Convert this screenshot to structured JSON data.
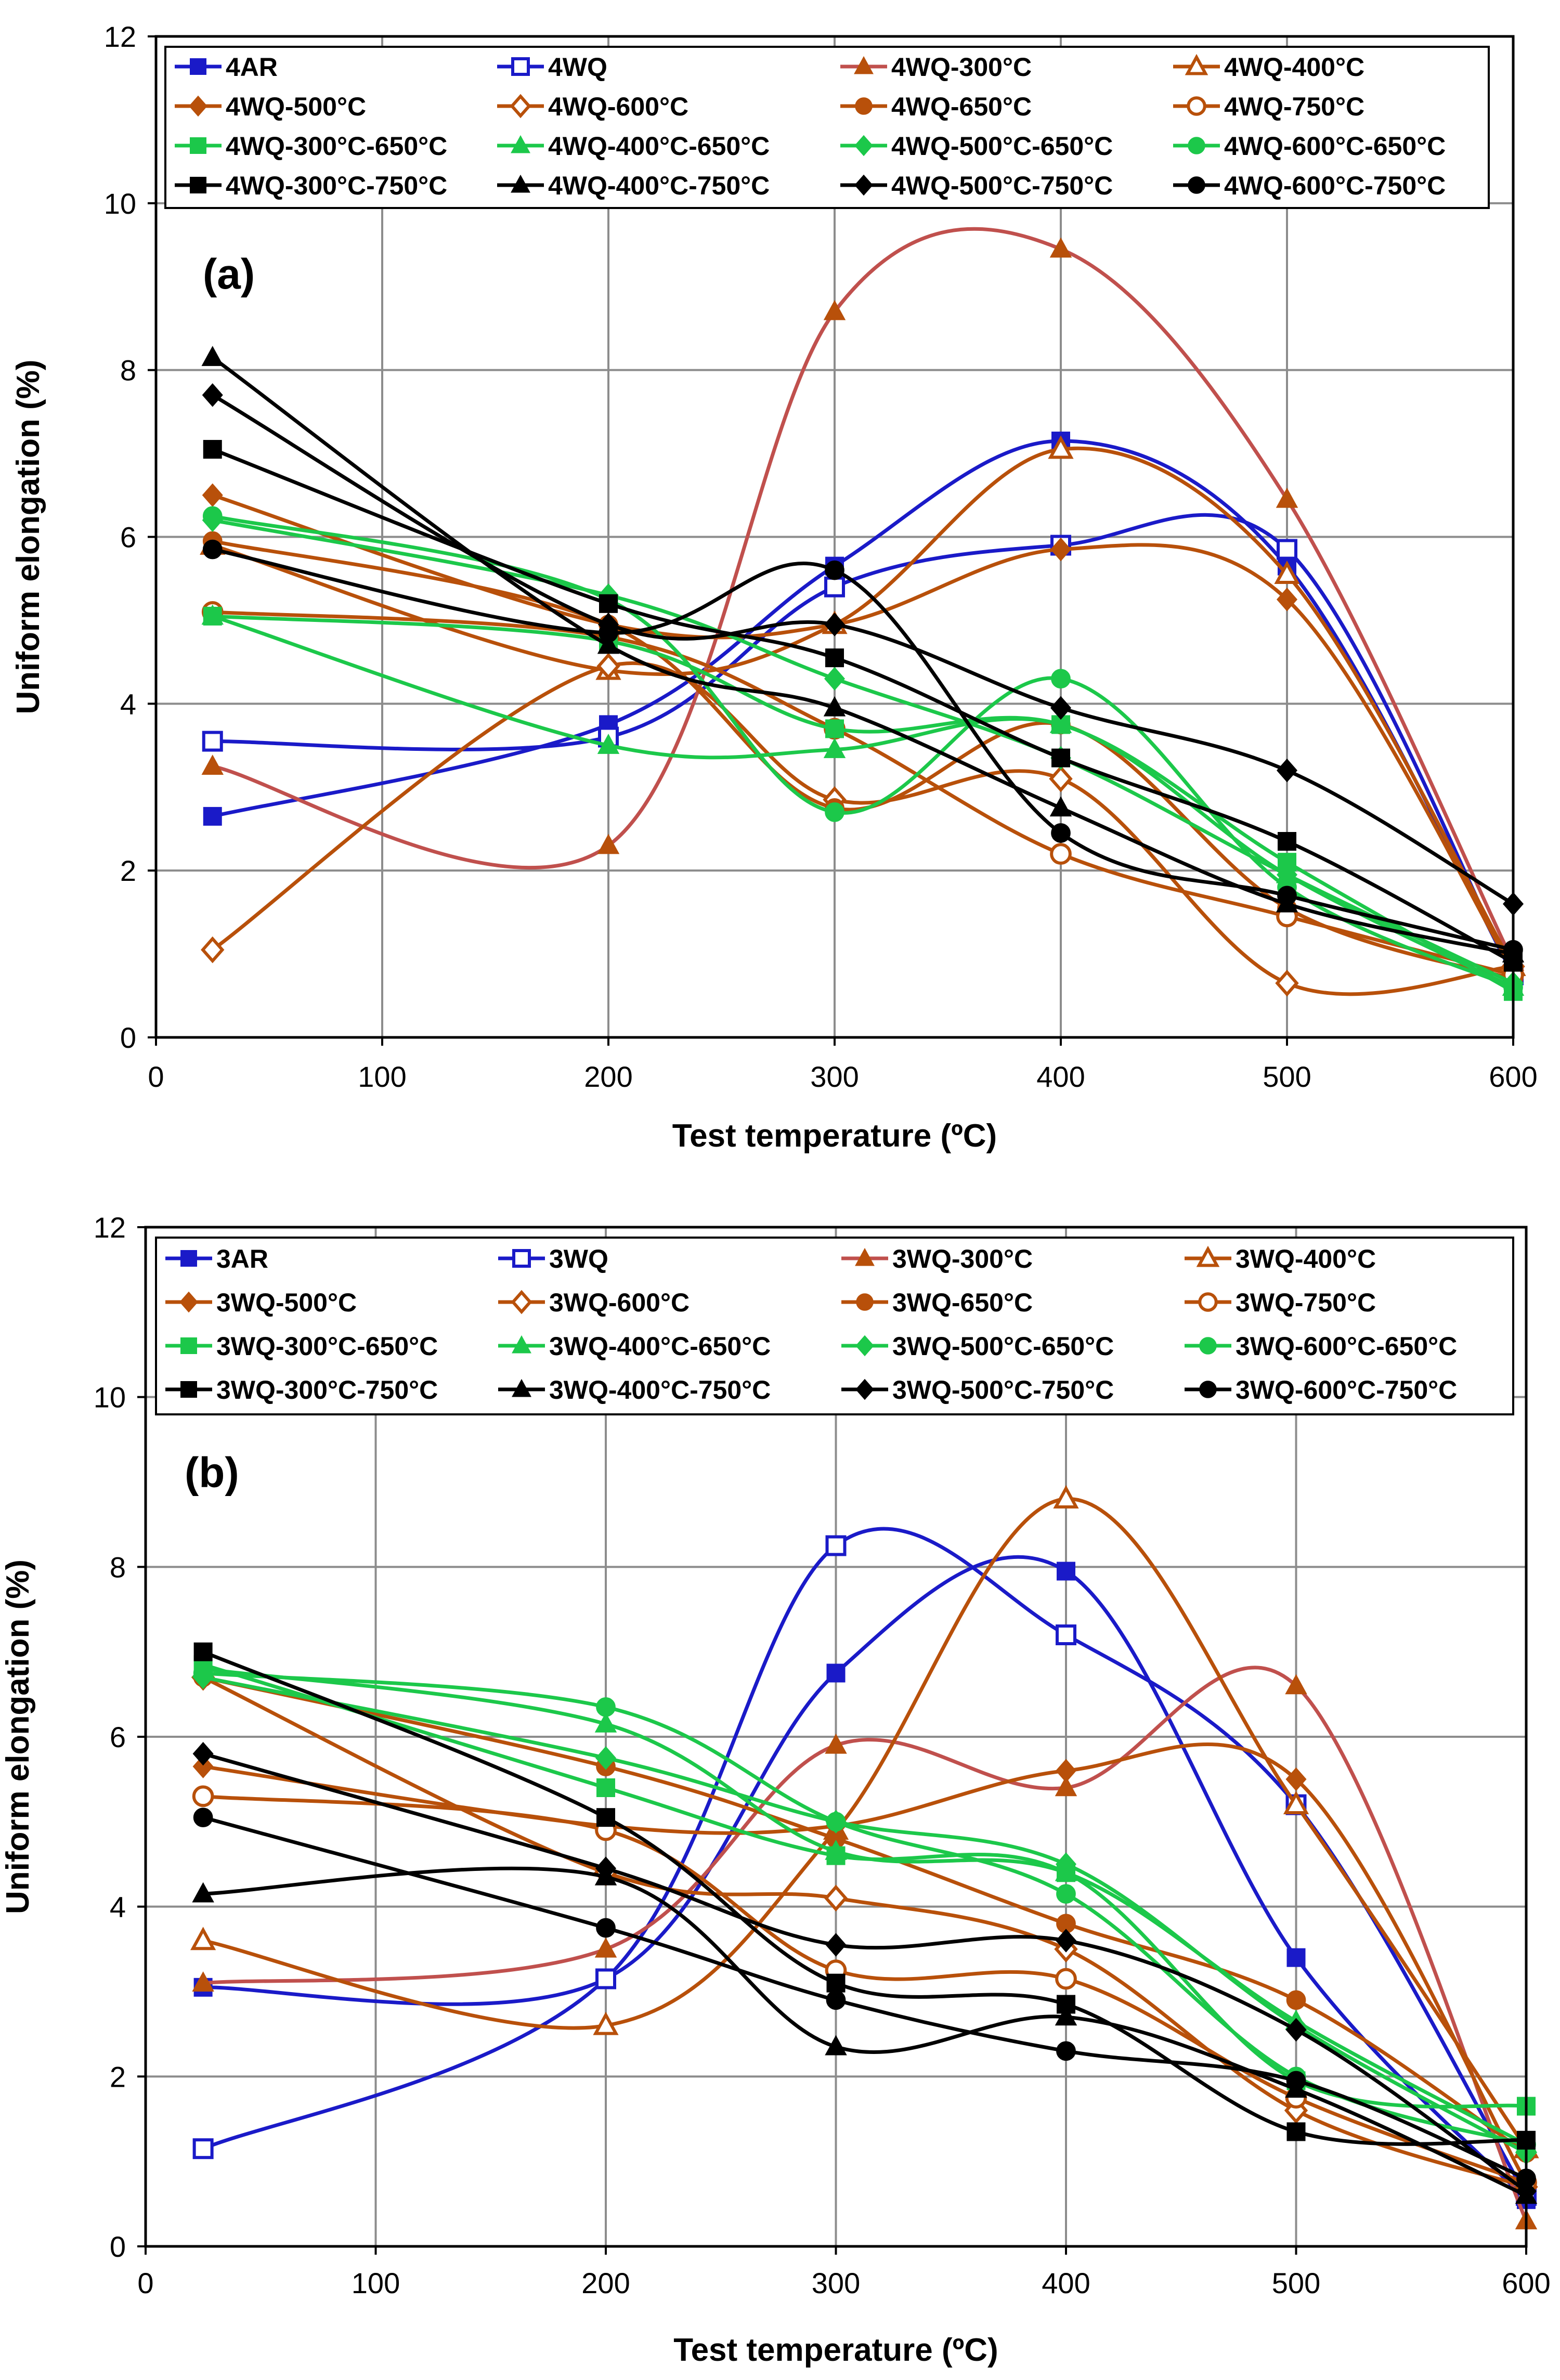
{
  "chart_data": [
    {
      "type": "line",
      "panel_label": "(a)",
      "xlabel": "Test temperature (ºC)",
      "ylabel": "Uniform elongation (%)",
      "xlim": [
        0,
        600
      ],
      "ylim": [
        0,
        12
      ],
      "xticks": [
        "0",
        "100",
        "200",
        "300",
        "400",
        "500",
        "600"
      ],
      "yticks": [
        "0",
        "2",
        "4",
        "6",
        "8",
        "10",
        "12"
      ],
      "grid": true,
      "legend_position": "top",
      "x": [
        25,
        200,
        300,
        400,
        500,
        600
      ],
      "series": [
        {
          "name": "4AR",
          "color": "#1a1ac8",
          "marker": "square",
          "filled": true,
          "values": [
            2.65,
            3.75,
            5.65,
            7.15,
            5.65,
            0.75
          ]
        },
        {
          "name": "4WQ",
          "color": "#1a1ac8",
          "marker": "square",
          "filled": false,
          "values": [
            3.55,
            3.6,
            5.4,
            5.9,
            5.85,
            0.75
          ]
        },
        {
          "name": "4WQ-300°C",
          "color": "#c0504d",
          "lineColor": "#c0504d",
          "markerColor": "#b8500a",
          "marker": "triangle",
          "filled": true,
          "values": [
            3.25,
            2.3,
            8.7,
            9.45,
            6.45,
            0.9
          ]
        },
        {
          "name": "4WQ-400°C",
          "color": "#b8500a",
          "marker": "triangle",
          "filled": false,
          "values": [
            5.9,
            4.4,
            4.95,
            7.05,
            5.55,
            0.85
          ]
        },
        {
          "name": "4WQ-500°C",
          "color": "#b8500a",
          "marker": "diamond",
          "filled": true,
          "values": [
            6.5,
            4.95,
            4.95,
            5.85,
            5.25,
            0.8
          ]
        },
        {
          "name": "4WQ-600°C",
          "color": "#b8500a",
          "marker": "diamond",
          "filled": false,
          "values": [
            1.05,
            4.45,
            2.85,
            3.1,
            0.65,
            0.85
          ]
        },
        {
          "name": "4WQ-650°C",
          "color": "#b8500a",
          "marker": "circle",
          "filled": true,
          "values": [
            5.95,
            4.95,
            2.75,
            3.75,
            1.55,
            0.7
          ]
        },
        {
          "name": "4WQ-750°C",
          "color": "#b8500a",
          "marker": "circle",
          "filled": false,
          "values": [
            5.1,
            4.8,
            3.7,
            2.2,
            1.45,
            0.75
          ]
        },
        {
          "name": "4WQ-300°C-650°C",
          "color": "#1cc84a",
          "marker": "square",
          "filled": true,
          "values": [
            5.05,
            4.75,
            3.7,
            3.75,
            2.1,
            0.55
          ]
        },
        {
          "name": "4WQ-400°C-650°C",
          "color": "#1cc84a",
          "marker": "triangle",
          "filled": true,
          "values": [
            5.05,
            3.5,
            3.45,
            3.75,
            1.95,
            0.6
          ]
        },
        {
          "name": "4WQ-500°C-650°C",
          "color": "#1cc84a",
          "marker": "diamond",
          "filled": true,
          "values": [
            6.2,
            5.3,
            4.3,
            3.35,
            1.95,
            0.65
          ]
        },
        {
          "name": "4WQ-600°C-650°C",
          "color": "#1cc84a",
          "marker": "circle",
          "filled": true,
          "values": [
            6.25,
            5.25,
            2.7,
            4.3,
            1.8,
            0.6
          ]
        },
        {
          "name": "4WQ-300°C-750°C",
          "color": "#000000",
          "marker": "square",
          "filled": true,
          "values": [
            7.05,
            5.2,
            4.55,
            3.35,
            2.35,
            0.9
          ]
        },
        {
          "name": "4WQ-400°C-750°C",
          "color": "#000000",
          "marker": "triangle",
          "filled": true,
          "values": [
            8.15,
            4.7,
            3.95,
            2.75,
            1.6,
            1.0
          ]
        },
        {
          "name": "4WQ-500°C-750°C",
          "color": "#000000",
          "marker": "diamond",
          "filled": true,
          "values": [
            7.7,
            4.95,
            4.95,
            3.95,
            3.2,
            1.6
          ]
        },
        {
          "name": "4WQ-600°C-750°C",
          "color": "#000000",
          "marker": "circle",
          "filled": true,
          "values": [
            5.85,
            4.85,
            5.6,
            2.45,
            1.7,
            1.05
          ]
        }
      ]
    },
    {
      "type": "line",
      "panel_label": "(b)",
      "xlabel": "Test temperature (ºC)",
      "ylabel": "Uniform elongation (%)",
      "xlim": [
        0,
        600
      ],
      "ylim": [
        0,
        12
      ],
      "xticks": [
        "0",
        "100",
        "200",
        "300",
        "400",
        "500",
        "600"
      ],
      "yticks": [
        "0",
        "2",
        "4",
        "6",
        "8",
        "10",
        "12"
      ],
      "grid": true,
      "legend_position": "top",
      "x": [
        25,
        200,
        300,
        400,
        500,
        600
      ],
      "series": [
        {
          "name": "3AR",
          "color": "#1a1ac8",
          "marker": "square",
          "filled": true,
          "values": [
            3.05,
            3.15,
            6.75,
            7.95,
            3.4,
            0.55
          ]
        },
        {
          "name": "3WQ",
          "color": "#1a1ac8",
          "marker": "square",
          "filled": false,
          "values": [
            1.15,
            3.15,
            8.25,
            7.2,
            5.2,
            0.6
          ]
        },
        {
          "name": "3WQ-300°C",
          "color": "#c0504d",
          "lineColor": "#c0504d",
          "markerColor": "#b8500a",
          "marker": "triangle",
          "filled": true,
          "values": [
            3.1,
            3.5,
            5.9,
            5.4,
            6.6,
            0.3
          ]
        },
        {
          "name": "3WQ-400°C",
          "color": "#b8500a",
          "marker": "triangle",
          "filled": false,
          "values": [
            3.6,
            2.6,
            4.9,
            8.8,
            5.2,
            1.15
          ]
        },
        {
          "name": "3WQ-500°C",
          "color": "#b8500a",
          "marker": "diamond",
          "filled": true,
          "values": [
            5.65,
            4.95,
            4.95,
            5.6,
            5.5,
            0.75
          ]
        },
        {
          "name": "3WQ-600°C",
          "color": "#b8500a",
          "marker": "diamond",
          "filled": false,
          "values": [
            6.7,
            4.4,
            4.1,
            3.5,
            1.6,
            0.7
          ]
        },
        {
          "name": "3WQ-650°C",
          "color": "#b8500a",
          "marker": "circle",
          "filled": true,
          "values": [
            6.7,
            5.65,
            4.8,
            3.8,
            2.9,
            1.1
          ]
        },
        {
          "name": "3WQ-750°C",
          "color": "#b8500a",
          "marker": "circle",
          "filled": false,
          "values": [
            5.3,
            4.9,
            3.25,
            3.15,
            1.75,
            0.75
          ]
        },
        {
          "name": "3WQ-300°C-650°C",
          "color": "#1cc84a",
          "marker": "square",
          "filled": true,
          "values": [
            6.85,
            5.4,
            4.6,
            4.4,
            1.95,
            1.65
          ]
        },
        {
          "name": "3WQ-400°C-650°C",
          "color": "#1cc84a",
          "marker": "triangle",
          "filled": true,
          "values": [
            6.8,
            6.15,
            4.65,
            4.4,
            2.65,
            1.2
          ]
        },
        {
          "name": "3WQ-500°C-650°C",
          "color": "#1cc84a",
          "marker": "diamond",
          "filled": true,
          "values": [
            6.7,
            5.75,
            5.0,
            4.5,
            2.6,
            1.1
          ]
        },
        {
          "name": "3WQ-600°C-650°C",
          "color": "#1cc84a",
          "marker": "circle",
          "filled": true,
          "values": [
            6.75,
            6.35,
            5.0,
            4.15,
            2.0,
            1.2
          ]
        },
        {
          "name": "3WQ-300°C-750°C",
          "color": "#000000",
          "marker": "square",
          "filled": true,
          "values": [
            7.0,
            5.05,
            3.1,
            2.85,
            1.35,
            1.25
          ]
        },
        {
          "name": "3WQ-400°C-750°C",
          "color": "#000000",
          "marker": "triangle",
          "filled": true,
          "values": [
            4.15,
            4.35,
            2.35,
            2.7,
            1.85,
            0.6
          ]
        },
        {
          "name": "3WQ-500°C-750°C",
          "color": "#000000",
          "marker": "diamond",
          "filled": true,
          "values": [
            5.8,
            4.45,
            3.55,
            3.6,
            2.55,
            0.65
          ]
        },
        {
          "name": "3WQ-600°C-750°C",
          "color": "#000000",
          "marker": "circle",
          "filled": true,
          "values": [
            5.05,
            3.75,
            2.9,
            2.3,
            1.95,
            0.8
          ]
        }
      ]
    }
  ]
}
